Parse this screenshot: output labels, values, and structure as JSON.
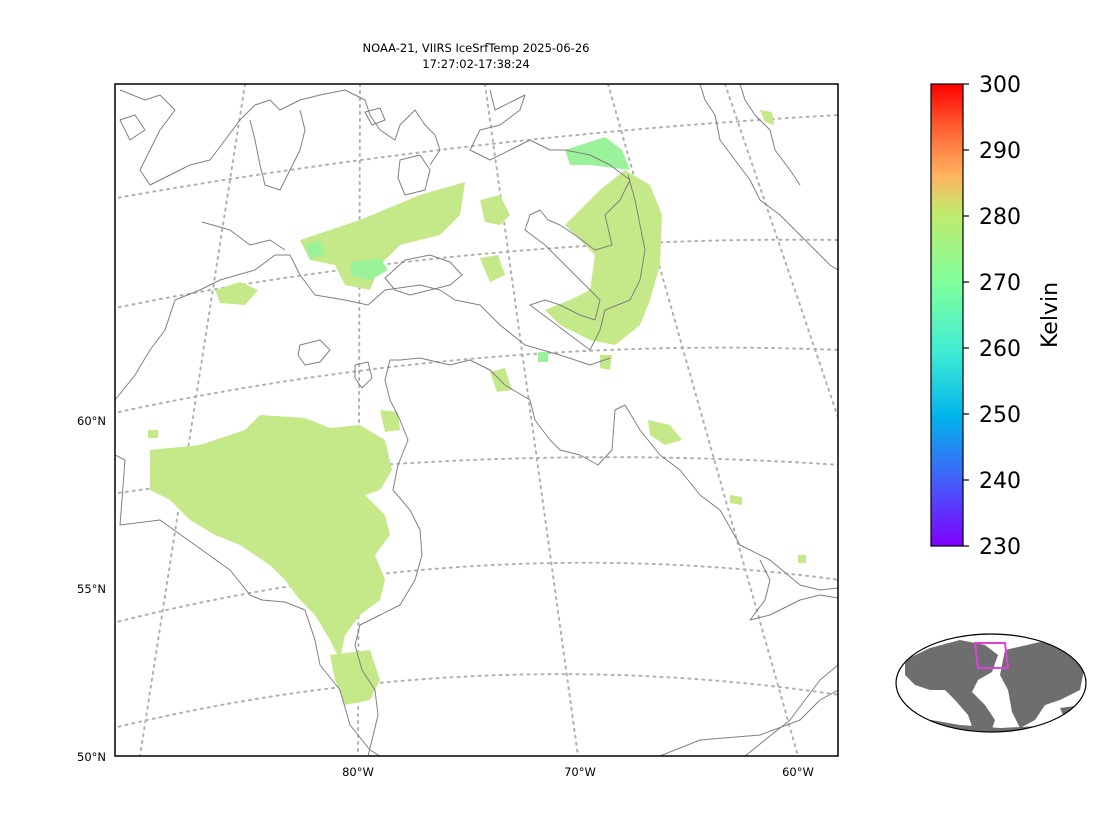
{
  "title_line1": "NOAA-21, VIIRS IceSrfTemp 2025-06-26",
  "title_line2": "17:27:02-17:38:24",
  "lat_labels": [
    "60°N",
    "55°N",
    "50°N"
  ],
  "lon_labels": [
    "80°W",
    "70°W",
    "60°W"
  ],
  "colorbar": {
    "label": "Kelvin",
    "min": 230,
    "max": 300,
    "ticks": [
      "300",
      "290",
      "280",
      "270",
      "260",
      "250",
      "240",
      "230"
    ]
  },
  "colors": {
    "ice_main": "#c5e888",
    "ice_cold": "#9af29a",
    "coastline": "#808080",
    "gridline": "#b0b0b0",
    "region_box": "#e040e0",
    "land_inset": "#6e6e6e"
  }
}
